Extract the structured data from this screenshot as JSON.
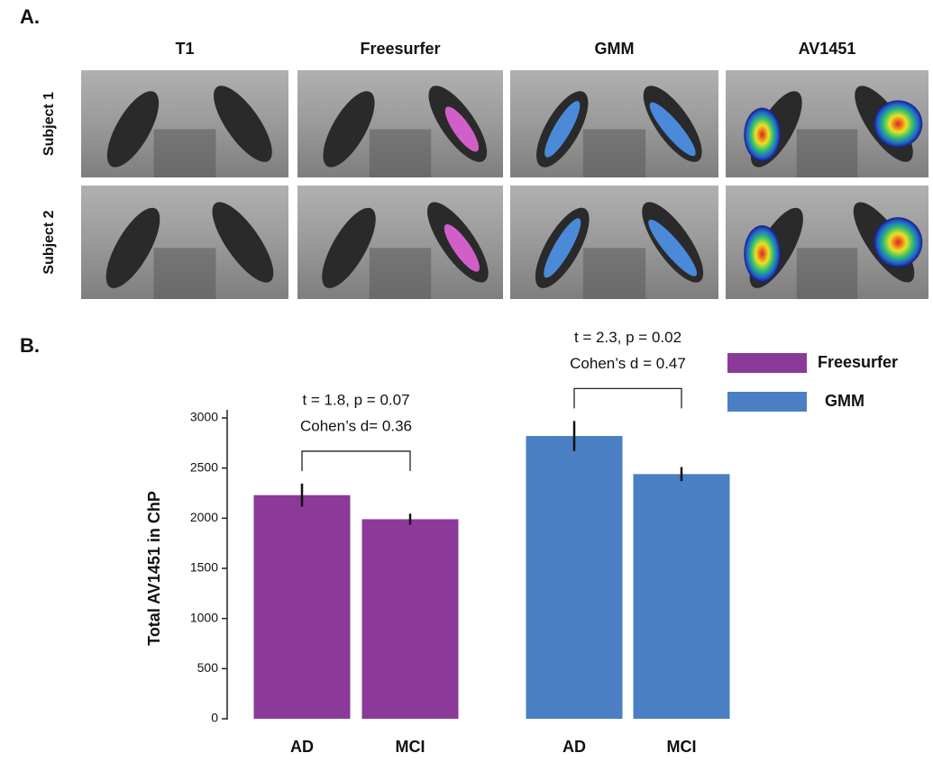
{
  "panel_a": {
    "label": "A.",
    "columns": [
      "T1",
      "Freesurfer",
      "GMM",
      "AV1451"
    ],
    "rows": [
      "Subject 1",
      "Subject 2"
    ]
  },
  "chart_data": {
    "type": "bar",
    "label": "B.",
    "ylabel": "Total AV1451 in ChP",
    "categories": [
      "AD",
      "MCI",
      "AD",
      "MCI"
    ],
    "series": [
      {
        "name": "Freesurfer",
        "color": "#8b3a9a",
        "values": [
          2230,
          1990,
          null,
          null
        ],
        "errors": [
          115,
          55,
          null,
          null
        ]
      },
      {
        "name": "GMM",
        "color": "#4a7fc4",
        "values": [
          null,
          null,
          2820,
          2440
        ],
        "errors": [
          null,
          null,
          150,
          70
        ]
      }
    ],
    "annotations": [
      [
        "t = 1.8, p = 0.07",
        "Cohen’s d= 0.36"
      ],
      [
        "t = 2.3, p = 0.02",
        "Cohen’s d = 0.47"
      ]
    ],
    "ylim": [
      0,
      3000
    ],
    "yticks": [
      0,
      500,
      1000,
      1500,
      2000,
      2500,
      3000
    ],
    "grid": false
  }
}
